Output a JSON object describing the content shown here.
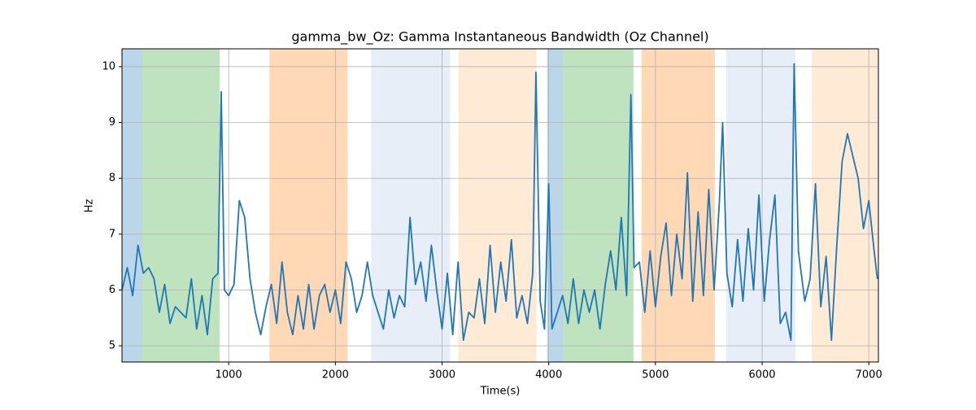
{
  "chart_data": {
    "type": "line",
    "title": "gamma_bw_Oz: Gamma Instantaneous Bandwidth (Oz Channel)",
    "xlabel": "Time(s)",
    "ylabel": "Hz",
    "xlim": [
      0,
      7090
    ],
    "ylim": [
      4.71,
      10.32
    ],
    "xticks": [
      1000,
      2000,
      3000,
      4000,
      5000,
      6000,
      7000
    ],
    "yticks": [
      5,
      6,
      7,
      8,
      9,
      10
    ],
    "grid": true,
    "spans": [
      {
        "start": 0,
        "end": 190,
        "color": "#1f77b4",
        "opacity": 0.3
      },
      {
        "start": 190,
        "end": 916,
        "color": "#2ca02c",
        "opacity": 0.3
      },
      {
        "start": 1382,
        "end": 2115,
        "color": "#ff7f0e",
        "opacity": 0.3
      },
      {
        "start": 2336,
        "end": 3076,
        "color": "#aec7e8",
        "opacity": 0.3
      },
      {
        "start": 3153,
        "end": 3885,
        "color": "#ffbb78",
        "opacity": 0.3
      },
      {
        "start": 3985,
        "end": 4137,
        "color": "#1f77b4",
        "opacity": 0.3
      },
      {
        "start": 4137,
        "end": 4794,
        "color": "#2ca02c",
        "opacity": 0.3
      },
      {
        "start": 4870,
        "end": 5557,
        "color": "#ff7f0e",
        "opacity": 0.3
      },
      {
        "start": 5664,
        "end": 6313,
        "color": "#aec7e8",
        "opacity": 0.3
      },
      {
        "start": 6466,
        "end": 7090,
        "color": "#ffbb78",
        "opacity": 0.3
      }
    ],
    "series": [
      {
        "color": "#1f77b4",
        "x": [
          0,
          50,
          100,
          150,
          200,
          250,
          300,
          350,
          400,
          450,
          500,
          550,
          600,
          650,
          700,
          750,
          800,
          850,
          900,
          930,
          960,
          1000,
          1050,
          1100,
          1150,
          1200,
          1250,
          1300,
          1350,
          1400,
          1450,
          1500,
          1550,
          1600,
          1650,
          1700,
          1750,
          1800,
          1850,
          1900,
          1950,
          2000,
          2050,
          2100,
          2150,
          2200,
          2250,
          2300,
          2350,
          2400,
          2450,
          2500,
          2550,
          2600,
          2650,
          2700,
          2750,
          2800,
          2850,
          2900,
          2950,
          3000,
          3050,
          3100,
          3150,
          3200,
          3250,
          3300,
          3350,
          3400,
          3450,
          3500,
          3550,
          3600,
          3650,
          3700,
          3750,
          3800,
          3850,
          3880,
          3920,
          3960,
          4000,
          4030,
          4080,
          4130,
          4180,
          4230,
          4280,
          4330,
          4380,
          4430,
          4480,
          4530,
          4580,
          4630,
          4680,
          4730,
          4770,
          4800,
          4850,
          4900,
          4950,
          5000,
          5050,
          5100,
          5150,
          5200,
          5250,
          5300,
          5350,
          5400,
          5450,
          5500,
          5550,
          5600,
          5630,
          5670,
          5720,
          5770,
          5820,
          5870,
          5920,
          5970,
          6020,
          6070,
          6120,
          6170,
          6220,
          6270,
          6300,
          6340,
          6400,
          6450,
          6500,
          6550,
          6600,
          6650,
          6700,
          6750,
          6800,
          6850,
          6900,
          6950,
          7000,
          7050,
          7080
        ],
        "values": [
          6.0,
          6.4,
          5.9,
          6.8,
          6.3,
          6.4,
          6.2,
          5.6,
          6.1,
          5.4,
          5.7,
          5.6,
          5.5,
          6.2,
          5.3,
          5.9,
          5.2,
          6.2,
          6.3,
          9.55,
          6.0,
          5.9,
          6.1,
          7.6,
          7.3,
          6.2,
          5.6,
          5.2,
          5.7,
          6.1,
          5.4,
          6.5,
          5.6,
          5.2,
          5.9,
          5.3,
          6.1,
          5.3,
          5.9,
          6.1,
          5.6,
          6.0,
          5.4,
          6.5,
          6.2,
          5.6,
          5.9,
          6.5,
          5.9,
          5.6,
          5.3,
          6.0,
          5.5,
          5.9,
          5.7,
          7.3,
          6.1,
          6.5,
          5.8,
          6.8,
          6.0,
          5.3,
          6.3,
          5.2,
          6.5,
          5.1,
          5.6,
          5.5,
          6.2,
          5.4,
          6.8,
          5.6,
          6.5,
          5.8,
          6.9,
          5.5,
          5.9,
          5.4,
          6.3,
          9.9,
          5.8,
          5.3,
          7.9,
          5.3,
          5.6,
          5.9,
          5.4,
          6.2,
          5.4,
          6.0,
          5.6,
          6.0,
          5.3,
          6.1,
          6.7,
          6.0,
          7.3,
          5.9,
          9.5,
          6.4,
          6.5,
          5.6,
          6.7,
          5.7,
          6.6,
          7.2,
          5.9,
          7.0,
          6.2,
          8.1,
          5.8,
          7.4,
          5.9,
          7.8,
          6.0,
          7.6,
          9.0,
          6.3,
          5.7,
          6.9,
          5.8,
          7.1,
          6.0,
          7.7,
          5.8,
          6.9,
          7.7,
          5.4,
          5.6,
          5.1,
          10.05,
          6.7,
          5.8,
          6.2,
          7.9,
          5.7,
          6.6,
          5.1,
          6.8,
          8.3,
          8.8,
          8.4,
          8.0,
          7.1,
          7.6,
          6.7,
          6.2
        ]
      }
    ]
  }
}
